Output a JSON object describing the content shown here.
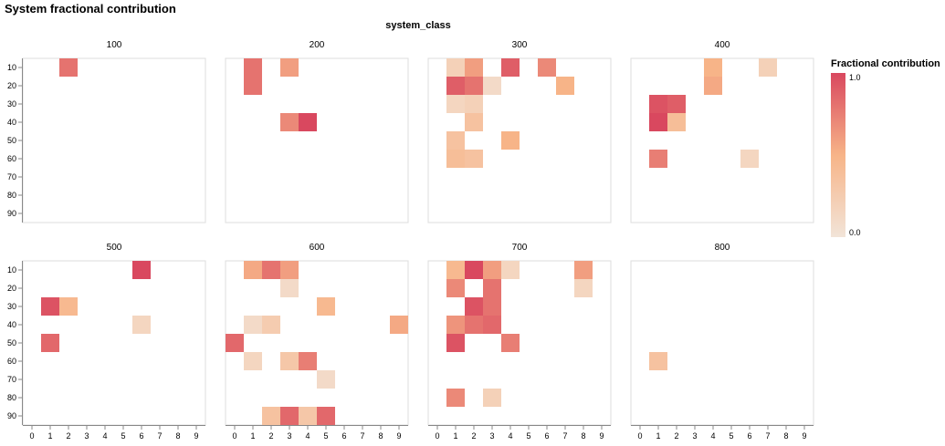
{
  "chart_data": {
    "type": "heatmap",
    "title": "System fractional contribution",
    "facet_field": "system_class",
    "x_ticks": [
      "0",
      "1",
      "2",
      "3",
      "4",
      "5",
      "6",
      "7",
      "8",
      "9"
    ],
    "y_ticks": [
      "10",
      "20",
      "30",
      "40",
      "50",
      "60",
      "70",
      "80",
      "90"
    ],
    "x_domain": [
      0,
      9
    ],
    "y_domain": [
      10,
      90
    ],
    "color_legend": {
      "title": "Fractional contribution",
      "min": 0.0,
      "max": 1.0,
      "min_label": "0.0",
      "max_label": "1.0",
      "color_low": "#f2e4d8",
      "color_mid": "#f7b488",
      "color_high": "#d9485f"
    },
    "panels": [
      {
        "label": "100",
        "cells": [
          {
            "x": 2,
            "y": 10,
            "v": 0.8
          }
        ]
      },
      {
        "label": "200",
        "cells": [
          {
            "x": 1,
            "y": 10,
            "v": 0.8
          },
          {
            "x": 3,
            "y": 10,
            "v": 0.6
          },
          {
            "x": 1,
            "y": 20,
            "v": 0.8
          },
          {
            "x": 3,
            "y": 40,
            "v": 0.7
          },
          {
            "x": 4,
            "y": 40,
            "v": 1.0
          }
        ]
      },
      {
        "label": "300",
        "cells": [
          {
            "x": 1,
            "y": 10,
            "v": 0.2
          },
          {
            "x": 2,
            "y": 10,
            "v": 0.6
          },
          {
            "x": 4,
            "y": 10,
            "v": 0.9
          },
          {
            "x": 6,
            "y": 10,
            "v": 0.7
          },
          {
            "x": 1,
            "y": 20,
            "v": 0.9
          },
          {
            "x": 2,
            "y": 20,
            "v": 0.8
          },
          {
            "x": 3,
            "y": 20,
            "v": 0.1
          },
          {
            "x": 7,
            "y": 20,
            "v": 0.5
          },
          {
            "x": 1,
            "y": 30,
            "v": 0.15
          },
          {
            "x": 2,
            "y": 30,
            "v": 0.2
          },
          {
            "x": 2,
            "y": 40,
            "v": 0.35
          },
          {
            "x": 1,
            "y": 50,
            "v": 0.35
          },
          {
            "x": 4,
            "y": 50,
            "v": 0.5
          },
          {
            "x": 1,
            "y": 60,
            "v": 0.4
          },
          {
            "x": 2,
            "y": 60,
            "v": 0.35
          }
        ]
      },
      {
        "label": "400",
        "cells": [
          {
            "x": 4,
            "y": 10,
            "v": 0.5
          },
          {
            "x": 7,
            "y": 10,
            "v": 0.2
          },
          {
            "x": 4,
            "y": 20,
            "v": 0.55
          },
          {
            "x": 1,
            "y": 30,
            "v": 0.95
          },
          {
            "x": 2,
            "y": 30,
            "v": 0.9
          },
          {
            "x": 1,
            "y": 40,
            "v": 1.0
          },
          {
            "x": 2,
            "y": 40,
            "v": 0.4
          },
          {
            "x": 1,
            "y": 60,
            "v": 0.75
          },
          {
            "x": 6,
            "y": 60,
            "v": 0.15
          }
        ]
      },
      {
        "label": "500",
        "cells": [
          {
            "x": 6,
            "y": 10,
            "v": 1.0
          },
          {
            "x": 1,
            "y": 30,
            "v": 0.95
          },
          {
            "x": 2,
            "y": 30,
            "v": 0.45
          },
          {
            "x": 6,
            "y": 40,
            "v": 0.15
          },
          {
            "x": 1,
            "y": 50,
            "v": 0.85
          }
        ]
      },
      {
        "label": "600",
        "cells": [
          {
            "x": 1,
            "y": 10,
            "v": 0.55
          },
          {
            "x": 2,
            "y": 10,
            "v": 0.8
          },
          {
            "x": 3,
            "y": 10,
            "v": 0.6
          },
          {
            "x": 3,
            "y": 20,
            "v": 0.1
          },
          {
            "x": 5,
            "y": 30,
            "v": 0.45
          },
          {
            "x": 1,
            "y": 40,
            "v": 0.1
          },
          {
            "x": 2,
            "y": 40,
            "v": 0.25
          },
          {
            "x": 9,
            "y": 40,
            "v": 0.55
          },
          {
            "x": 0,
            "y": 50,
            "v": 0.85
          },
          {
            "x": 1,
            "y": 60,
            "v": 0.15
          },
          {
            "x": 3,
            "y": 60,
            "v": 0.3
          },
          {
            "x": 4,
            "y": 60,
            "v": 0.75
          },
          {
            "x": 5,
            "y": 70,
            "v": 0.1
          },
          {
            "x": 2,
            "y": 90,
            "v": 0.35
          },
          {
            "x": 3,
            "y": 90,
            "v": 0.85
          },
          {
            "x": 4,
            "y": 90,
            "v": 0.3
          },
          {
            "x": 5,
            "y": 90,
            "v": 0.85
          }
        ]
      },
      {
        "label": "700",
        "cells": [
          {
            "x": 1,
            "y": 10,
            "v": 0.45
          },
          {
            "x": 2,
            "y": 10,
            "v": 1.0
          },
          {
            "x": 3,
            "y": 10,
            "v": 0.6
          },
          {
            "x": 4,
            "y": 10,
            "v": 0.15
          },
          {
            "x": 8,
            "y": 10,
            "v": 0.6
          },
          {
            "x": 1,
            "y": 20,
            "v": 0.7
          },
          {
            "x": 3,
            "y": 20,
            "v": 0.8
          },
          {
            "x": 8,
            "y": 20,
            "v": 0.15
          },
          {
            "x": 2,
            "y": 30,
            "v": 0.95
          },
          {
            "x": 3,
            "y": 30,
            "v": 0.8
          },
          {
            "x": 1,
            "y": 40,
            "v": 0.65
          },
          {
            "x": 2,
            "y": 40,
            "v": 0.8
          },
          {
            "x": 3,
            "y": 40,
            "v": 0.85
          },
          {
            "x": 1,
            "y": 50,
            "v": 0.95
          },
          {
            "x": 4,
            "y": 50,
            "v": 0.75
          },
          {
            "x": 1,
            "y": 80,
            "v": 0.7
          },
          {
            "x": 3,
            "y": 80,
            "v": 0.2
          }
        ]
      },
      {
        "label": "800",
        "cells": [
          {
            "x": 1,
            "y": 60,
            "v": 0.35
          }
        ]
      }
    ]
  }
}
